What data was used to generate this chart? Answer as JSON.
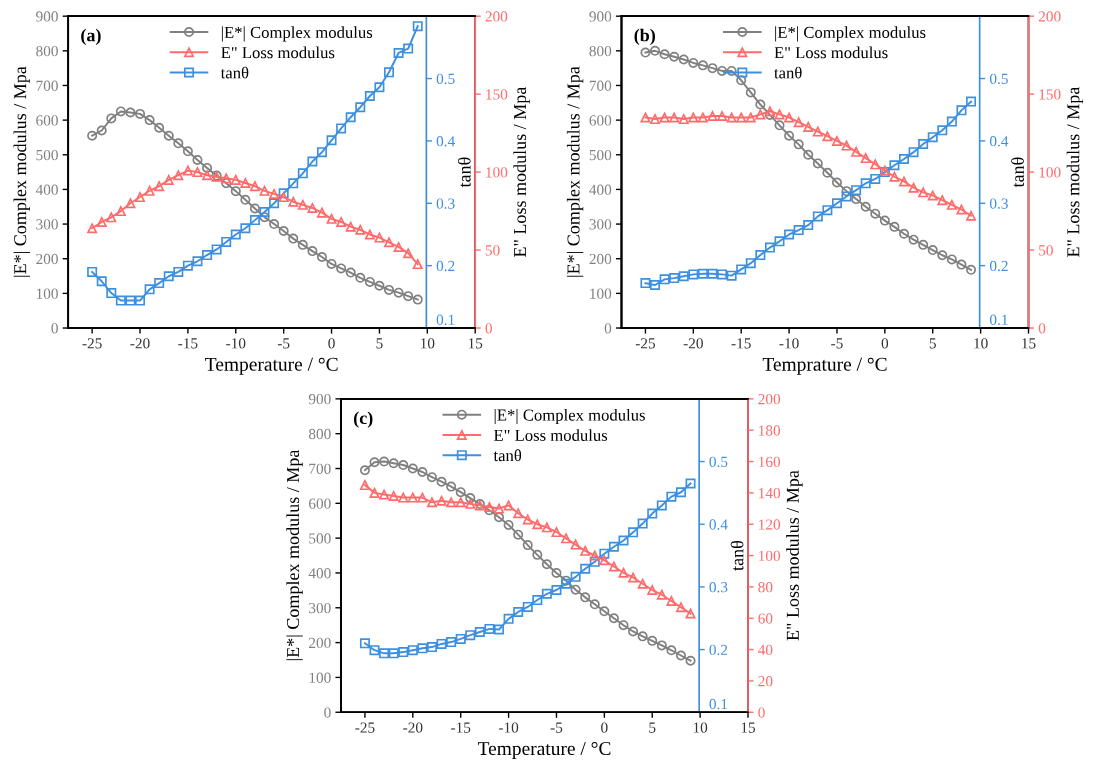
{
  "chart_data": [
    {
      "type": "line",
      "title": "(a)",
      "xlabel": "Temperature / °C",
      "ylabel": "|E*| Complex modulus / Mpa",
      "y2label": "tanθ",
      "y3label": "E\" Loss modulus / Mpa",
      "x": [
        -25,
        -24,
        -23,
        -22,
        -21,
        -20,
        -19,
        -18,
        -17,
        -16,
        -15,
        -14,
        -13,
        -12,
        -11,
        -10,
        -9,
        -8,
        -7,
        -6,
        -5,
        -4,
        -3,
        -2,
        -1,
        0,
        1,
        2,
        3,
        4,
        5,
        6,
        7,
        8,
        9
      ],
      "xlim": [
        -27.5,
        15
      ],
      "xticks": [
        -25,
        -20,
        -15,
        -10,
        -5,
        0,
        5,
        10,
        15
      ],
      "ylim": [
        0,
        900
      ],
      "yticks": [
        0,
        100,
        200,
        300,
        400,
        500,
        600,
        700,
        800,
        900
      ],
      "y2lim": [
        0.1,
        0.6
      ],
      "y2ticks": [
        0.1,
        0.2,
        0.3,
        0.4,
        0.5
      ],
      "y3lim": [
        0,
        200
      ],
      "y3ticks": [
        0,
        50,
        100,
        150,
        200
      ],
      "legend": "top",
      "grid": false,
      "line_style": "solid",
      "series": [
        {
          "name": "|E*| Complex modulus",
          "color": "#808080",
          "marker": "circle",
          "axis": "y",
          "values": [
            555,
            570,
            605,
            625,
            622,
            618,
            600,
            578,
            555,
            533,
            510,
            485,
            462,
            440,
            418,
            395,
            370,
            345,
            320,
            300,
            280,
            258,
            240,
            222,
            205,
            185,
            172,
            160,
            145,
            133,
            122,
            110,
            102,
            92,
            82
          ]
        },
        {
          "name": "E\" Loss modulus",
          "color": "#ff6b6b",
          "marker": "triangle",
          "axis": "y3",
          "values": [
            64,
            68,
            71,
            75,
            80,
            84,
            88,
            91,
            95,
            98,
            101,
            100,
            98,
            97,
            96,
            95,
            93,
            91,
            88,
            86,
            84,
            81,
            79,
            77,
            74,
            70,
            68,
            65,
            63,
            60,
            58,
            55,
            52,
            48,
            41
          ]
        },
        {
          "name": "tanθ",
          "color": "#3d8fe0",
          "marker": "square",
          "axis": "y2",
          "values": [
            0.19,
            0.175,
            0.156,
            0.144,
            0.144,
            0.144,
            0.162,
            0.172,
            0.183,
            0.19,
            0.2,
            0.207,
            0.217,
            0.226,
            0.238,
            0.25,
            0.26,
            0.273,
            0.286,
            0.3,
            0.316,
            0.332,
            0.348,
            0.367,
            0.382,
            0.401,
            0.42,
            0.438,
            0.454,
            0.472,
            0.486,
            0.51,
            0.541,
            0.548,
            0.584
          ]
        }
      ]
    },
    {
      "type": "line",
      "title": "(b)",
      "xlabel": "Temprature / °C",
      "ylabel": "|E*| Complex modulus / Mpa",
      "y2label": "tanθ",
      "y3label": "E\" Loss modulus / Mpa",
      "x": [
        -25,
        -24,
        -23,
        -22,
        -21,
        -20,
        -19,
        -18,
        -17,
        -16,
        -15,
        -14,
        -13,
        -12,
        -11,
        -10,
        -9,
        -8,
        -7,
        -6,
        -5,
        -4,
        -3,
        -2,
        -1,
        0,
        1,
        2,
        3,
        4,
        5,
        6,
        7,
        8,
        9
      ],
      "xlim": [
        -27.5,
        15
      ],
      "xticks": [
        -25,
        -20,
        -15,
        -10,
        -5,
        0,
        5,
        10,
        15
      ],
      "ylim": [
        0,
        900
      ],
      "yticks": [
        0,
        100,
        200,
        300,
        400,
        500,
        600,
        700,
        800,
        900
      ],
      "y2lim": [
        0.1,
        0.6
      ],
      "y2ticks": [
        0.1,
        0.2,
        0.3,
        0.4,
        0.5
      ],
      "y3lim": [
        0,
        200
      ],
      "y3ticks": [
        0,
        50,
        100,
        150,
        200
      ],
      "legend": "top",
      "grid": false,
      "line_style": "solid",
      "series": [
        {
          "name": "|E*| Complex modulus",
          "color": "#808080",
          "marker": "circle",
          "axis": "y",
          "values": [
            795,
            800,
            790,
            783,
            775,
            765,
            758,
            750,
            742,
            742,
            715,
            680,
            645,
            615,
            585,
            555,
            530,
            500,
            475,
            448,
            420,
            395,
            372,
            350,
            330,
            310,
            292,
            272,
            255,
            240,
            225,
            210,
            198,
            183,
            168
          ]
        },
        {
          "name": "E\" Loss modulus",
          "color": "#ff6b6b",
          "marker": "triangle",
          "axis": "y3",
          "values": [
            135,
            134,
            135,
            135,
            134,
            135,
            135,
            136,
            136,
            135,
            135,
            135,
            137,
            139,
            137,
            135,
            132,
            129,
            126,
            123,
            120,
            117,
            113,
            109,
            105,
            101,
            97,
            94,
            90,
            87,
            85,
            82,
            79,
            76,
            72
          ]
        },
        {
          "name": "tanθ",
          "color": "#3d8fe0",
          "marker": "square",
          "axis": "y2",
          "values": [
            0.172,
            0.169,
            0.178,
            0.18,
            0.183,
            0.186,
            0.187,
            0.187,
            0.186,
            0.184,
            0.194,
            0.204,
            0.217,
            0.229,
            0.239,
            0.25,
            0.257,
            0.265,
            0.279,
            0.289,
            0.3,
            0.311,
            0.321,
            0.332,
            0.339,
            0.35,
            0.361,
            0.371,
            0.382,
            0.395,
            0.406,
            0.417,
            0.431,
            0.449,
            0.463
          ]
        }
      ]
    },
    {
      "type": "line",
      "title": "(c)",
      "xlabel": "Temperature / °C",
      "ylabel": "|E*| Complex modulus / Mpa",
      "y2label": "tanθ",
      "y3label": "E\" Loss modulus / Mpa",
      "x": [
        -25,
        -24,
        -23,
        -22,
        -21,
        -20,
        -19,
        -18,
        -17,
        -16,
        -15,
        -14,
        -13,
        -12,
        -11,
        -10,
        -9,
        -8,
        -7,
        -6,
        -5,
        -4,
        -3,
        -2,
        -1,
        0,
        1,
        2,
        3,
        4,
        5,
        6,
        7,
        8,
        9
      ],
      "xlim": [
        -27.5,
        15
      ],
      "xticks": [
        -25,
        -20,
        -15,
        -10,
        -5,
        0,
        5,
        10,
        15
      ],
      "ylim": [
        0,
        900
      ],
      "yticks": [
        0,
        100,
        200,
        300,
        400,
        500,
        600,
        700,
        800,
        900
      ],
      "y2lim": [
        0.1,
        0.6
      ],
      "y2ticks": [
        0.1,
        0.2,
        0.3,
        0.4,
        0.5
      ],
      "y3lim": [
        0,
        200
      ],
      "y3ticks": [
        0,
        20,
        40,
        60,
        80,
        100,
        120,
        140,
        160,
        180,
        200
      ],
      "legend": "top",
      "grid": false,
      "line_style": "solid",
      "series": [
        {
          "name": "|E*| Complex modulus",
          "color": "#808080",
          "marker": "circle",
          "axis": "y",
          "values": [
            695,
            718,
            720,
            715,
            710,
            700,
            690,
            675,
            662,
            648,
            632,
            615,
            598,
            580,
            560,
            538,
            510,
            480,
            452,
            425,
            400,
            378,
            352,
            330,
            310,
            290,
            270,
            250,
            232,
            218,
            205,
            192,
            178,
            163,
            148
          ]
        },
        {
          "name": "E\" Loss modulus",
          "color": "#ff6b6b",
          "marker": "triangle",
          "axis": "y3",
          "values": [
            145,
            140,
            139,
            138,
            137,
            137,
            137,
            134,
            135,
            134,
            134,
            133,
            132,
            131,
            130,
            132,
            127,
            123,
            120,
            118,
            115,
            111,
            107,
            103,
            100,
            97,
            93,
            89,
            86,
            82,
            78,
            75,
            71,
            67,
            63
          ]
        },
        {
          "name": "tanθ",
          "color": "#3d8fe0",
          "marker": "square",
          "axis": "y2",
          "values": [
            0.21,
            0.199,
            0.194,
            0.194,
            0.196,
            0.199,
            0.202,
            0.204,
            0.209,
            0.212,
            0.217,
            0.223,
            0.228,
            0.233,
            0.232,
            0.249,
            0.26,
            0.268,
            0.279,
            0.289,
            0.295,
            0.305,
            0.316,
            0.329,
            0.34,
            0.353,
            0.364,
            0.374,
            0.387,
            0.401,
            0.417,
            0.43,
            0.444,
            0.451,
            0.465
          ]
        }
      ]
    }
  ]
}
